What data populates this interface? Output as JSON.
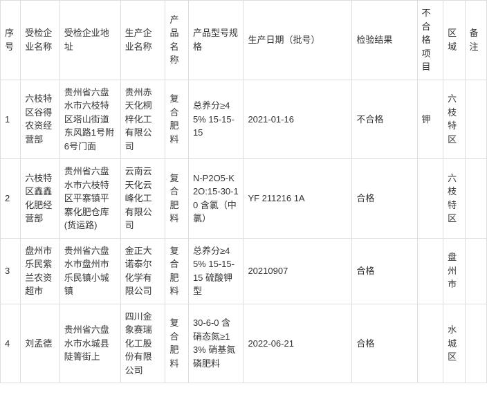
{
  "table": {
    "columns": [
      {
        "key": "序号",
        "label": "序号",
        "class": "col-序号"
      },
      {
        "key": "受检企业名称",
        "label": "受检企业名称",
        "class": "col-受检企业名称"
      },
      {
        "key": "受检企业地址",
        "label": "受检企业地址",
        "class": "col-受检企业地址"
      },
      {
        "key": "生产企业名称",
        "label": "生产企业名称",
        "class": "col-生产企业名称"
      },
      {
        "key": "产品名称",
        "label": "产品名称",
        "class": "col-产品名称"
      },
      {
        "key": "产品型号规格",
        "label": "产品型号规格",
        "class": "col-产品型号规格"
      },
      {
        "key": "生产日期",
        "label": "生产日期（批号）",
        "class": "col-生产日期"
      },
      {
        "key": "检验结果",
        "label": "检验结果",
        "class": "col-检验结果"
      },
      {
        "key": "不合格项目",
        "label": "不合格项目",
        "class": "col-不合格项目"
      },
      {
        "key": "区域",
        "label": "区域",
        "class": "col-区域"
      },
      {
        "key": "备注",
        "label": "备注",
        "class": "col-备注"
      }
    ],
    "rows": [
      {
        "序号": "1",
        "受检企业名称": "六枝特区谷得农资经营部",
        "受检企业地址": "贵州省六盘水市六枝特区塔山街道东风路1号附6号门面",
        "生产企业名称": "贵州赤天化桐梓化工有限公司",
        "产品名称": "复合肥料",
        "产品型号规格": "总养分≥45% 15-15-15",
        "生产日期": "2021-01-16",
        "检验结果": "不合格",
        "不合格项目": "钾",
        "区域": "六枝特区",
        "备注": ""
      },
      {
        "序号": "2",
        "受检企业名称": "六枝特区鑫鑫化肥经营部",
        "受检企业地址": "贵州省六盘水市六枝特区平寨镇平寨化肥仓库(货运路)",
        "生产企业名称": "云南云天化云峰化工有限公司",
        "产品名称": "复合肥料",
        "产品型号规格": "N-P2O5-K2O:15-30-10 含氯（中氯）",
        "生产日期": "YF 211216 1A",
        "检验结果": "合格",
        "不合格项目": "",
        "区域": "六枝特区",
        "备注": ""
      },
      {
        "序号": "3",
        "受检企业名称": "盘州市乐民紫兰农资超市",
        "受检企业地址": "贵州省六盘水市盘州市乐民镇小城镇",
        "生产企业名称": "金正大诺泰尔化学有限公司",
        "产品名称": "复合肥料",
        "产品型号规格": "总养分≥45% 15-15-15 硫酸钾型",
        "生产日期": "20210907",
        "检验结果": "合格",
        "不合格项目": "",
        "区域": "盘州市",
        "备注": ""
      },
      {
        "序号": "4",
        "受检企业名称": "刘孟德",
        "受检企业地址": "贵州省六盘水市水城县陡箐街上",
        "生产企业名称": "四川金象赛瑞化工股份有限公司",
        "产品名称": "复合肥料",
        "产品型号规格": "30-6-0 含硝态氮≥13% 硝基氮磷肥料",
        "生产日期": "2022-06-21",
        "检验结果": "合格",
        "不合格项目": "",
        "区域": "水城区",
        "备注": ""
      }
    ]
  }
}
